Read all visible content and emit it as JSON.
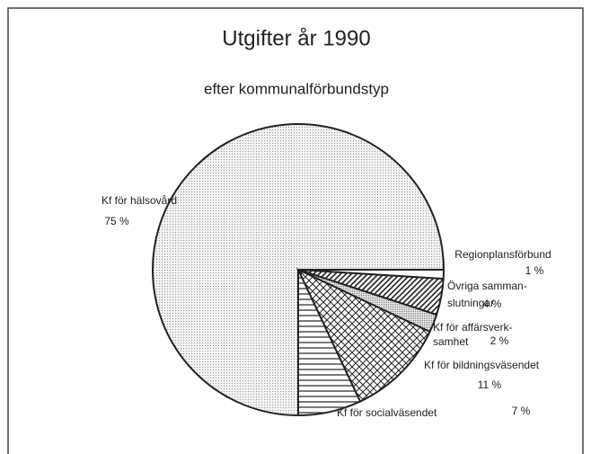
{
  "chart_data": {
    "type": "pie",
    "title": "Utgifter år 1990",
    "subtitle": "efter kommunalförbundstyp",
    "categories": [
      [
        "Kf för hälsovård"
      ],
      [
        "Regionplansförbund"
      ],
      [
        "Övriga samman-",
        "slutningar"
      ],
      [
        "Kf för affärsverk-",
        "samhet"
      ],
      [
        "Kf för bildningsväsendet"
      ],
      [
        "Kf för socialväsendet"
      ]
    ],
    "values": [
      75,
      1,
      4,
      2,
      11,
      7
    ],
    "value_labels": [
      "75 %",
      "1 %",
      "4 %",
      "2 %",
      "11 %",
      "7 %"
    ]
  }
}
